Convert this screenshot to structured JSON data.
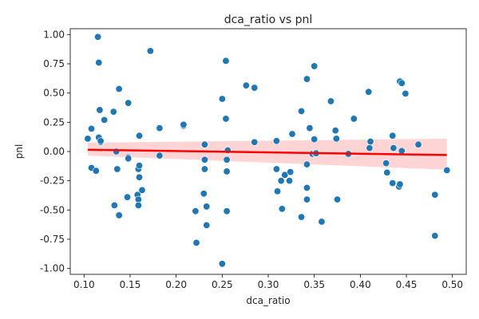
{
  "chart_data": {
    "type": "scatter",
    "title": "dca_ratio vs pnl",
    "xlabel": "dca_ratio",
    "ylabel": "pnl",
    "xlim": [
      0.085,
      0.515
    ],
    "ylim": [
      -1.05,
      1.05
    ],
    "xticks": [
      "0.10",
      "0.15",
      "0.20",
      "0.25",
      "0.30",
      "0.35",
      "0.40",
      "0.45",
      "0.50"
    ],
    "yticks": [
      "-1.00",
      "-0.75",
      "-0.50",
      "-0.25",
      "0.00",
      "0.25",
      "0.50",
      "0.75",
      "1.00"
    ],
    "grid": false,
    "colors": {
      "points": "#1f77b4",
      "regression": "#ff0000",
      "confidence_band": "#ffcccc"
    },
    "regression": {
      "x": [
        0.104,
        0.494
      ],
      "y": [
        0.015,
        -0.03
      ],
      "band_upper": [
        0.075,
        0.11
      ],
      "band_lower": [
        -0.035,
        -0.155
      ]
    },
    "points": [
      [
        0.104,
        0.11
      ],
      [
        0.108,
        0.195
      ],
      [
        0.108,
        -0.14
      ],
      [
        0.113,
        -0.165
      ],
      [
        0.115,
        0.98
      ],
      [
        0.116,
        0.76
      ],
      [
        0.116,
        0.12
      ],
      [
        0.117,
        0.355
      ],
      [
        0.118,
        0.08
      ],
      [
        0.118,
        0.09
      ],
      [
        0.122,
        0.27
      ],
      [
        0.132,
        0.34
      ],
      [
        0.133,
        -0.46
      ],
      [
        0.135,
        0.0
      ],
      [
        0.136,
        -0.15
      ],
      [
        0.138,
        -0.545
      ],
      [
        0.138,
        0.535
      ],
      [
        0.147,
        -0.39
      ],
      [
        0.148,
        -0.05
      ],
      [
        0.148,
        -0.06
      ],
      [
        0.148,
        0.415
      ],
      [
        0.158,
        -0.37
      ],
      [
        0.159,
        -0.15
      ],
      [
        0.159,
        -0.41
      ],
      [
        0.159,
        -0.46
      ],
      [
        0.16,
        -0.22
      ],
      [
        0.16,
        -0.12
      ],
      [
        0.16,
        0.135
      ],
      [
        0.163,
        -0.33
      ],
      [
        0.172,
        0.86
      ],
      [
        0.182,
        0.2
      ],
      [
        0.182,
        -0.035
      ],
      [
        0.208,
        0.22
      ],
      [
        0.208,
        0.23
      ],
      [
        0.221,
        -0.51
      ],
      [
        0.222,
        -0.78
      ],
      [
        0.23,
        -0.36
      ],
      [
        0.231,
        0.06
      ],
      [
        0.231,
        -0.07
      ],
      [
        0.231,
        -0.15
      ],
      [
        0.233,
        -0.47
      ],
      [
        0.233,
        -0.63
      ],
      [
        0.25,
        -0.96
      ],
      [
        0.25,
        0.45
      ],
      [
        0.254,
        0.28
      ],
      [
        0.254,
        0.775
      ],
      [
        0.255,
        -0.51
      ],
      [
        0.255,
        -0.07
      ],
      [
        0.255,
        -0.17
      ],
      [
        0.256,
        0.01
      ],
      [
        0.276,
        0.565
      ],
      [
        0.285,
        0.545
      ],
      [
        0.285,
        0.08
      ],
      [
        0.309,
        0.09
      ],
      [
        0.309,
        -0.15
      ],
      [
        0.31,
        -0.34
      ],
      [
        0.314,
        -0.25
      ],
      [
        0.315,
        -0.49
      ],
      [
        0.318,
        -0.2
      ],
      [
        0.323,
        -0.25
      ],
      [
        0.324,
        -0.175
      ],
      [
        0.326,
        0.15
      ],
      [
        0.336,
        0.345
      ],
      [
        0.336,
        -0.56
      ],
      [
        0.342,
        -0.11
      ],
      [
        0.342,
        -0.31
      ],
      [
        0.342,
        -0.41
      ],
      [
        0.342,
        0.62
      ],
      [
        0.345,
        0.2
      ],
      [
        0.348,
        -0.02
      ],
      [
        0.35,
        0.73
      ],
      [
        0.35,
        0.105
      ],
      [
        0.351,
        -0.015
      ],
      [
        0.352,
        -0.015
      ],
      [
        0.358,
        -0.6
      ],
      [
        0.368,
        0.43
      ],
      [
        0.373,
        0.18
      ],
      [
        0.374,
        0.11
      ],
      [
        0.375,
        -0.41
      ],
      [
        0.387,
        -0.02
      ],
      [
        0.393,
        0.28
      ],
      [
        0.409,
        0.51
      ],
      [
        0.41,
        0.03
      ],
      [
        0.411,
        0.085
      ],
      [
        0.428,
        -0.1
      ],
      [
        0.429,
        -0.18
      ],
      [
        0.435,
        -0.27
      ],
      [
        0.435,
        0.135
      ],
      [
        0.436,
        0.03
      ],
      [
        0.442,
        -0.3
      ],
      [
        0.443,
        -0.28
      ],
      [
        0.443,
        0.6
      ],
      [
        0.445,
        0.585
      ],
      [
        0.445,
        0.005
      ],
      [
        0.449,
        0.495
      ],
      [
        0.463,
        0.06
      ],
      [
        0.481,
        -0.37
      ],
      [
        0.481,
        -0.72
      ],
      [
        0.494,
        -0.16
      ]
    ]
  }
}
